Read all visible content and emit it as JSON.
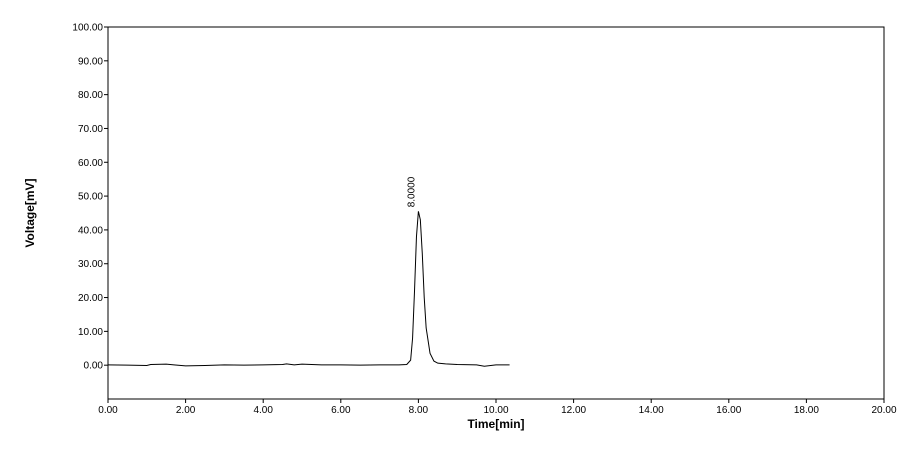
{
  "chart_data": {
    "type": "line",
    "x_label": "Time[min]",
    "y_label": "Voltage[mV]",
    "xlim": [
      0,
      20
    ],
    "ylim": [
      -10,
      100
    ],
    "xticks": [
      {
        "value": 0,
        "label": "0.00"
      },
      {
        "value": 2,
        "label": "2.00"
      },
      {
        "value": 4,
        "label": "4.00"
      },
      {
        "value": 6,
        "label": "6.00"
      },
      {
        "value": 8,
        "label": "8.00"
      },
      {
        "value": 10,
        "label": "10.00"
      },
      {
        "value": 12,
        "label": "12.00"
      },
      {
        "value": 14,
        "label": "14.00"
      },
      {
        "value": 16,
        "label": "16.00"
      },
      {
        "value": 18,
        "label": "18.00"
      },
      {
        "value": 20,
        "label": "20.00"
      }
    ],
    "yticks": [
      {
        "value": 0,
        "label": "0.00"
      },
      {
        "value": 10,
        "label": "10.00"
      },
      {
        "value": 20,
        "label": "20.00"
      },
      {
        "value": 30,
        "label": "30.00"
      },
      {
        "value": 40,
        "label": "40.00"
      },
      {
        "value": 50,
        "label": "50.00"
      },
      {
        "value": 60,
        "label": "60.00"
      },
      {
        "value": 70,
        "label": "70.00"
      },
      {
        "value": 80,
        "label": "80.00"
      },
      {
        "value": 90,
        "label": "90.00"
      },
      {
        "value": 100,
        "label": "100.00"
      }
    ],
    "grid": false,
    "x": [
      0,
      0.5,
      1.0,
      1.1,
      1.5,
      1.7,
      2.0,
      2.5,
      3.0,
      3.5,
      4.0,
      4.5,
      4.6,
      4.8,
      5.0,
      5.5,
      6.0,
      6.5,
      7.0,
      7.5,
      7.7,
      7.8,
      7.85,
      7.9,
      7.95,
      8.0,
      8.05,
      8.1,
      8.15,
      8.2,
      8.3,
      8.4,
      8.5,
      8.7,
      9.0,
      9.5,
      9.7,
      10.0,
      10.35
    ],
    "series": [
      {
        "color": "#000000",
        "values": [
          0.1,
          0.0,
          -0.1,
          0.2,
          0.3,
          0.1,
          -0.2,
          -0.1,
          0.1,
          0.0,
          0.1,
          0.2,
          0.4,
          0.1,
          0.3,
          0.1,
          0.1,
          0.0,
          0.1,
          0.1,
          0.2,
          1.5,
          8.0,
          22.0,
          38.0,
          45.5,
          43.0,
          33.0,
          20.0,
          11.0,
          3.5,
          1.2,
          0.6,
          0.4,
          0.2,
          0.1,
          -0.3,
          0.1,
          0.1
        ]
      }
    ],
    "annotations": [
      {
        "text": "8.0000",
        "x": 8.0,
        "y": 45.5
      }
    ]
  }
}
